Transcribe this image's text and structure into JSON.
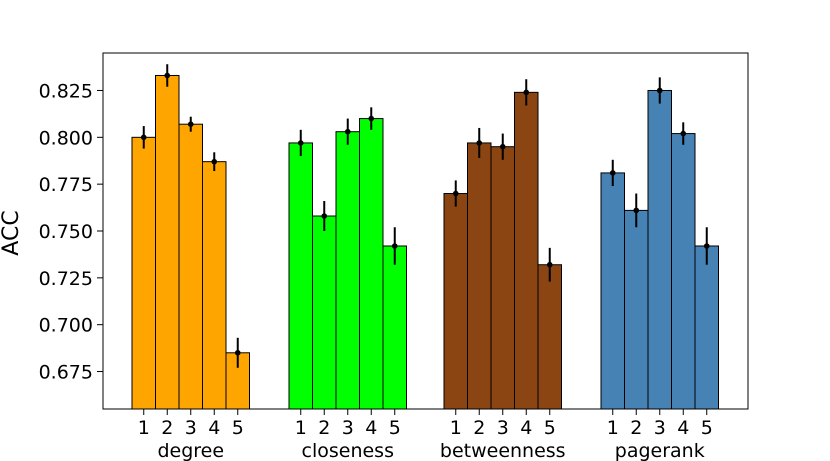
{
  "chart_data": {
    "type": "bar",
    "ylabel": "ACC",
    "ylim": [
      0.655,
      0.845
    ],
    "yticks": [
      0.675,
      0.7,
      0.725,
      0.75,
      0.775,
      0.8,
      0.825
    ],
    "ytick_labels": [
      "0.675",
      "0.700",
      "0.725",
      "0.750",
      "0.775",
      "0.800",
      "0.825"
    ],
    "grid": false,
    "groups": [
      {
        "name": "degree",
        "color": "#ffa500",
        "categories": [
          "1",
          "2",
          "3",
          "4",
          "5"
        ],
        "values": [
          0.8,
          0.833,
          0.807,
          0.787,
          0.685
        ],
        "errors": [
          0.006,
          0.006,
          0.004,
          0.005,
          0.008
        ]
      },
      {
        "name": "closeness",
        "color": "#00ff00",
        "categories": [
          "1",
          "2",
          "3",
          "4",
          "5"
        ],
        "values": [
          0.797,
          0.758,
          0.803,
          0.81,
          0.742
        ],
        "errors": [
          0.007,
          0.008,
          0.007,
          0.006,
          0.01
        ]
      },
      {
        "name": "betweenness",
        "color": "#8b4513",
        "categories": [
          "1",
          "2",
          "3",
          "4",
          "5"
        ],
        "values": [
          0.77,
          0.797,
          0.795,
          0.824,
          0.732
        ],
        "errors": [
          0.007,
          0.008,
          0.007,
          0.007,
          0.009
        ]
      },
      {
        "name": "pagerank",
        "color": "#4682b4",
        "categories": [
          "1",
          "2",
          "3",
          "4",
          "5"
        ],
        "values": [
          0.781,
          0.761,
          0.825,
          0.802,
          0.742
        ],
        "errors": [
          0.007,
          0.009,
          0.007,
          0.006,
          0.01
        ]
      }
    ]
  }
}
